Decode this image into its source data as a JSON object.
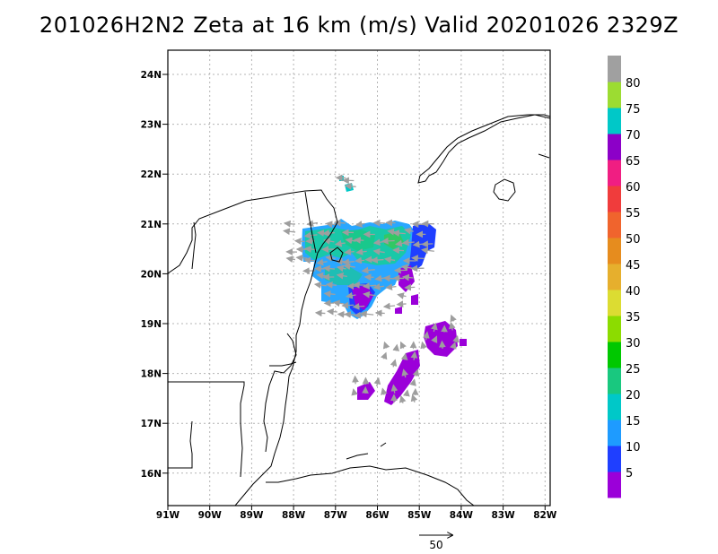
{
  "title": "201026H2N2 Zeta at 16 km (m/s) Valid 20201026 2329Z",
  "axes": {
    "lat_labels": [
      "24N",
      "23N",
      "22N",
      "21N",
      "20N",
      "19N",
      "18N",
      "17N",
      "16N"
    ],
    "lon_labels": [
      "91W",
      "90W",
      "89W",
      "88W",
      "87W",
      "86W",
      "85W",
      "84W",
      "83W",
      "82W"
    ],
    "lon_range": [
      -91,
      -81.9
    ],
    "lat_range": [
      15.4,
      24.5
    ]
  },
  "colorbar": {
    "labels": [
      "5",
      "10",
      "15",
      "20",
      "25",
      "30",
      "35",
      "40",
      "45",
      "50",
      "55",
      "60",
      "65",
      "70",
      "75",
      "80"
    ],
    "colors": [
      "#9b00d9",
      "#1f3fff",
      "#1e9bff",
      "#00c8c8",
      "#19c87f",
      "#00c800",
      "#8cdc00",
      "#dcdc32",
      "#e6af2d",
      "#e68c1e",
      "#f0642d",
      "#f03c3c",
      "#f01e82",
      "#8c00c8",
      "#00c8c8",
      "#9cdc32",
      "#a0a0a0"
    ]
  },
  "reference_vector": {
    "label": "50"
  },
  "colors": {
    "grid": "#b4b4b4",
    "coast": "#000000",
    "arrow": "#a0a0a0"
  }
}
